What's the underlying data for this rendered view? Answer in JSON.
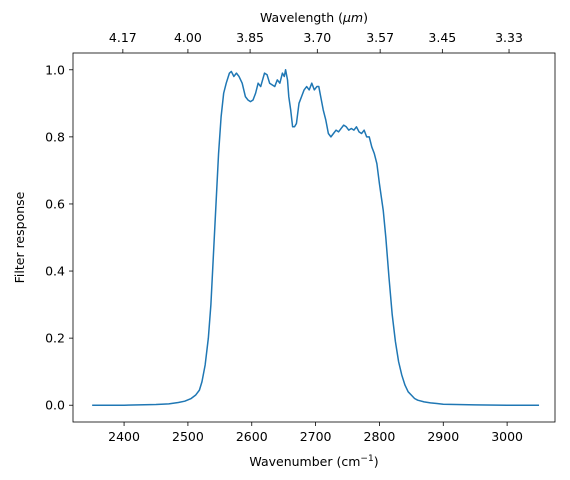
{
  "chart_data": {
    "type": "line",
    "xlabel": "Wavenumber (cm",
    "xlabel_sup": "−1",
    "xlabel_end": ")",
    "ylabel": "Filter response",
    "top_xlabel": "Wavelength (",
    "top_xlabel_unit": "μm",
    "top_xlabel_end": ")",
    "xlim": [
      2320,
      3075
    ],
    "ylim": [
      -0.05,
      1.05
    ],
    "x_ticks": [
      2400,
      2500,
      2600,
      2700,
      2800,
      2900,
      3000
    ],
    "y_ticks": [
      0.0,
      0.2,
      0.4,
      0.6,
      0.8,
      1.0
    ],
    "x_tick_labels": [
      "2400",
      "2500",
      "2600",
      "2700",
      "2800",
      "2900",
      "3000"
    ],
    "y_tick_labels": [
      "0.0",
      "0.2",
      "0.4",
      "0.6",
      "0.8",
      "1.0"
    ],
    "top_ticks": [
      {
        "label": "4.17",
        "wavelength_um": 4.17
      },
      {
        "label": "4.00",
        "wavelength_um": 4.0
      },
      {
        "label": "3.85",
        "wavelength_um": 3.85
      },
      {
        "label": "3.70",
        "wavelength_um": 3.7
      },
      {
        "label": "3.57",
        "wavelength_um": 3.57
      },
      {
        "label": "3.45",
        "wavelength_um": 3.45
      },
      {
        "label": "3.33",
        "wavelength_um": 3.33
      }
    ],
    "grid": false,
    "line_color": "#1f77b4",
    "series": [
      {
        "x": [
          2350,
          2400,
          2450,
          2470,
          2485,
          2495,
          2505,
          2512,
          2518,
          2522,
          2527,
          2532,
          2536,
          2540,
          2544,
          2548,
          2552,
          2556,
          2560,
          2565,
          2568,
          2572,
          2576,
          2580,
          2585,
          2590,
          2594,
          2598,
          2602,
          2606,
          2610,
          2614,
          2617,
          2620,
          2624,
          2628,
          2632,
          2636,
          2640,
          2644,
          2648,
          2651,
          2653,
          2656,
          2658,
          2661,
          2664,
          2667,
          2670,
          2674,
          2678,
          2682,
          2686,
          2690,
          2694,
          2698,
          2702,
          2705,
          2708,
          2712,
          2716,
          2720,
          2724,
          2728,
          2732,
          2736,
          2740,
          2744,
          2748,
          2752,
          2756,
          2760,
          2764,
          2768,
          2772,
          2776,
          2780,
          2784,
          2788,
          2792,
          2796,
          2800,
          2803,
          2806,
          2810,
          2815,
          2820,
          2825,
          2830,
          2835,
          2840,
          2845,
          2850,
          2855,
          2860,
          2870,
          2880,
          2890,
          2900,
          2920,
          2950,
          3000,
          3050
        ],
        "y": [
          0.0,
          0.0,
          0.002,
          0.004,
          0.008,
          0.012,
          0.02,
          0.03,
          0.045,
          0.07,
          0.12,
          0.2,
          0.3,
          0.45,
          0.6,
          0.75,
          0.86,
          0.93,
          0.96,
          0.99,
          0.995,
          0.98,
          0.99,
          0.98,
          0.96,
          0.92,
          0.91,
          0.905,
          0.91,
          0.93,
          0.96,
          0.95,
          0.97,
          0.99,
          0.985,
          0.96,
          0.955,
          0.95,
          0.97,
          0.96,
          0.99,
          0.98,
          1.0,
          0.97,
          0.92,
          0.88,
          0.83,
          0.83,
          0.84,
          0.9,
          0.92,
          0.94,
          0.95,
          0.94,
          0.96,
          0.94,
          0.95,
          0.95,
          0.92,
          0.88,
          0.85,
          0.81,
          0.8,
          0.81,
          0.82,
          0.815,
          0.825,
          0.835,
          0.83,
          0.82,
          0.825,
          0.82,
          0.83,
          0.815,
          0.81,
          0.82,
          0.8,
          0.8,
          0.77,
          0.75,
          0.72,
          0.66,
          0.62,
          0.58,
          0.5,
          0.38,
          0.27,
          0.19,
          0.13,
          0.09,
          0.06,
          0.04,
          0.03,
          0.02,
          0.015,
          0.01,
          0.007,
          0.005,
          0.003,
          0.002,
          0.001,
          0.0,
          0.0
        ]
      }
    ]
  }
}
